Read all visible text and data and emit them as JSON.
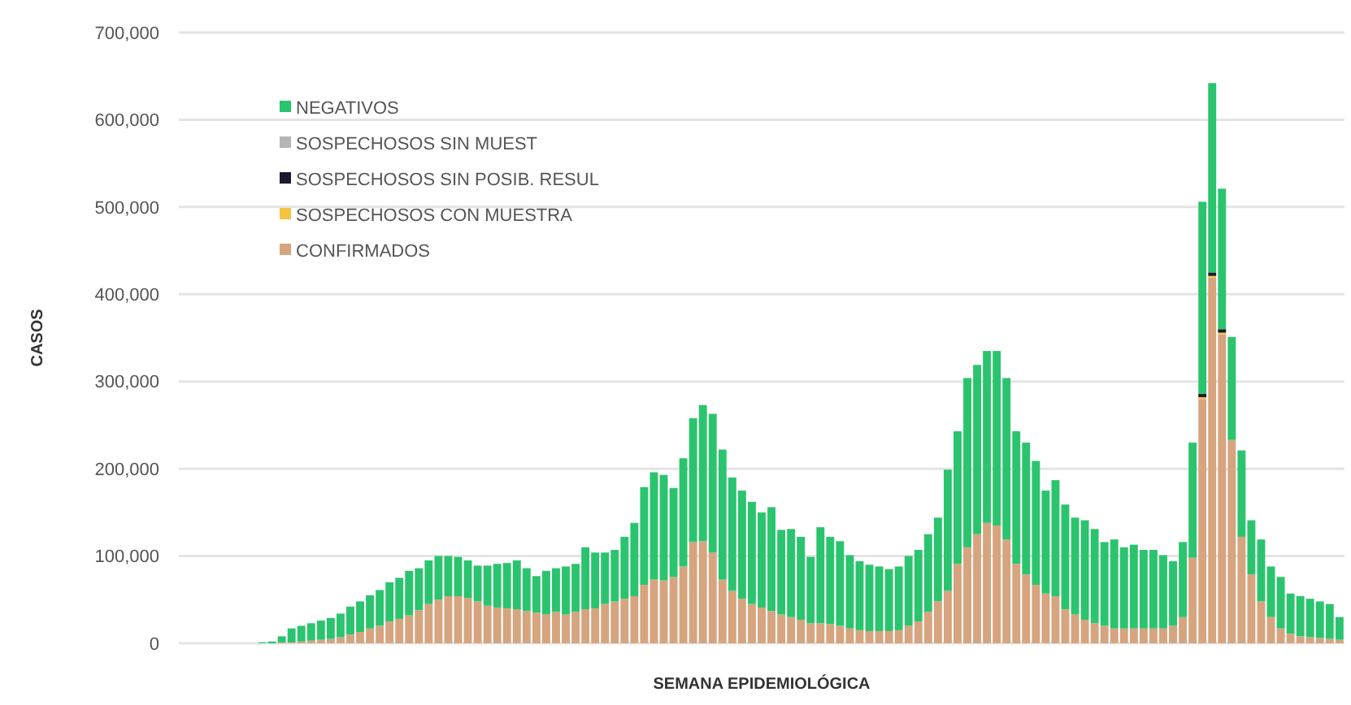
{
  "chart_data": {
    "type": "bar",
    "stacked": true,
    "xlabel": "SEMANA EPIDEMIOLÓGICA",
    "ylabel": "CASOS",
    "ylim": [
      0,
      700000
    ],
    "yticks": [
      {
        "value": 0,
        "label": "0"
      },
      {
        "value": 100000,
        "label": "100,000"
      },
      {
        "value": 200000,
        "label": "200,000"
      },
      {
        "value": 300000,
        "label": "300,000"
      },
      {
        "value": 400000,
        "label": "400,000"
      },
      {
        "value": 500000,
        "label": "500,000"
      },
      {
        "value": 600000,
        "label": "600,000"
      },
      {
        "value": 700000,
        "label": "700,000"
      }
    ],
    "grid": "y",
    "legend": "top left",
    "categories": [
      null,
      null,
      null,
      null,
      null,
      null,
      null,
      null,
      null,
      null,
      null,
      null,
      null,
      null,
      null,
      null,
      null,
      null,
      null,
      null,
      null,
      null,
      null,
      null,
      null,
      null,
      null,
      null,
      null,
      null,
      null,
      null,
      null,
      null,
      null,
      null,
      null,
      null,
      null,
      null,
      null,
      null,
      null,
      null,
      null,
      null,
      null,
      null,
      null,
      null,
      null,
      null,
      null,
      null,
      null,
      null,
      null,
      null,
      null,
      null,
      null,
      null,
      null,
      null,
      null,
      null,
      null,
      null,
      null,
      null,
      null,
      null,
      null,
      null,
      null,
      null,
      null,
      null,
      null,
      null,
      null,
      null,
      null,
      null,
      null,
      null,
      null,
      null,
      null,
      null,
      null,
      null,
      null,
      null,
      null,
      null,
      null,
      null,
      null,
      null,
      null,
      null,
      null,
      null,
      null,
      null,
      null,
      null,
      null,
      null,
      null,
      null,
      null,
      null,
      null,
      null,
      null,
      null,
      null
    ],
    "series": [
      {
        "name": "CONFIRMADOS",
        "color": "#d6a47e",
        "values": [
          0,
          0,
          0,
          0,
          0,
          0,
          0,
          0,
          0,
          0,
          1000,
          1000,
          2000,
          3000,
          4000,
          5000,
          7000,
          10000,
          13000,
          17000,
          20000,
          25000,
          28000,
          32000,
          38000,
          45000,
          50000,
          54000,
          54000,
          52000,
          48000,
          43000,
          41000,
          40000,
          39000,
          37000,
          35000,
          33000,
          36000,
          33000,
          36000,
          39000,
          40000,
          45000,
          48000,
          51000,
          54000,
          67000,
          73000,
          72000,
          76000,
          88000,
          116000,
          117000,
          104000,
          73000,
          60000,
          51000,
          45000,
          41000,
          37000,
          33000,
          30000,
          27000,
          23000,
          23000,
          22000,
          20000,
          17000,
          15000,
          14000,
          14000,
          14000,
          15000,
          20000,
          25000,
          36000,
          48000,
          60000,
          91000,
          110000,
          125000,
          138000,
          135000,
          119000,
          91000,
          79000,
          67000,
          57000,
          54000,
          39000,
          33000,
          27000,
          23000,
          20000,
          17000,
          17000,
          17000,
          17000,
          17000,
          17000,
          20000,
          30000,
          98000,
          280000,
          419000,
          354000,
          233000,
          122000,
          79000,
          48000,
          30000,
          17000,
          11000,
          8000,
          7000,
          6000,
          5000,
          4000
        ]
      },
      {
        "name": "SOSPECHOSOS CON MUESTRA",
        "color": "#f5c342",
        "values": [
          0,
          0,
          0,
          0,
          0,
          0,
          0,
          0,
          0,
          0,
          0,
          0,
          0,
          0,
          0,
          0,
          0,
          0,
          0,
          0,
          0,
          0,
          0,
          0,
          0,
          0,
          0,
          0,
          0,
          0,
          0,
          0,
          0,
          0,
          0,
          0,
          0,
          0,
          0,
          0,
          0,
          0,
          0,
          0,
          0,
          0,
          0,
          0,
          0,
          0,
          0,
          0,
          0,
          0,
          0,
          0,
          0,
          0,
          0,
          0,
          0,
          0,
          0,
          0,
          0,
          0,
          0,
          0,
          0,
          0,
          0,
          0,
          0,
          0,
          0,
          0,
          0,
          0,
          0,
          0,
          0,
          0,
          0,
          0,
          0,
          0,
          0,
          0,
          0,
          0,
          0,
          0,
          0,
          0,
          0,
          0,
          0,
          0,
          0,
          0,
          0,
          0,
          0,
          0,
          2000,
          2000,
          2000,
          0,
          0,
          0,
          0,
          0,
          0,
          0,
          0,
          0,
          0,
          0,
          0
        ]
      },
      {
        "name": "SOSPECHOSOS SIN POSIB. RESUL",
        "color": "#1c1a2e",
        "values": [
          0,
          0,
          0,
          0,
          0,
          0,
          0,
          0,
          0,
          0,
          0,
          0,
          0,
          0,
          0,
          0,
          0,
          0,
          0,
          0,
          0,
          0,
          0,
          0,
          0,
          0,
          0,
          0,
          0,
          0,
          0,
          0,
          0,
          0,
          0,
          0,
          0,
          0,
          0,
          0,
          0,
          0,
          0,
          0,
          0,
          0,
          0,
          0,
          0,
          0,
          0,
          0,
          0,
          0,
          0,
          0,
          0,
          0,
          0,
          0,
          0,
          0,
          0,
          0,
          0,
          0,
          0,
          0,
          0,
          0,
          0,
          0,
          0,
          0,
          0,
          0,
          0,
          0,
          0,
          0,
          0,
          0,
          0,
          0,
          0,
          0,
          0,
          0,
          0,
          0,
          0,
          0,
          0,
          0,
          0,
          0,
          0,
          0,
          0,
          0,
          0,
          0,
          0,
          0,
          4000,
          4000,
          4000,
          0,
          0,
          0,
          0,
          0,
          0,
          0,
          0,
          0,
          0,
          0,
          0
        ]
      },
      {
        "name": "SOSPECHOSOS SIN MUEST",
        "color": "#b5b5b5",
        "values": [
          0,
          0,
          0,
          0,
          0,
          0,
          0,
          0,
          0,
          0,
          0,
          0,
          0,
          0,
          0,
          0,
          0,
          0,
          0,
          0,
          0,
          0,
          0,
          0,
          0,
          0,
          0,
          0,
          0,
          0,
          0,
          0,
          0,
          0,
          0,
          0,
          0,
          0,
          0,
          0,
          0,
          0,
          0,
          0,
          0,
          0,
          0,
          0,
          0,
          0,
          0,
          0,
          0,
          0,
          0,
          0,
          0,
          0,
          0,
          0,
          0,
          0,
          0,
          0,
          0,
          0,
          0,
          0,
          0,
          0,
          0,
          0,
          0,
          0,
          0,
          0,
          0,
          0,
          0,
          0,
          0,
          0,
          0,
          0,
          0,
          0,
          0,
          0,
          0,
          0,
          0,
          0,
          0,
          0,
          0,
          0,
          0,
          0,
          0,
          0,
          0,
          0,
          0,
          0,
          null,
          null,
          null,
          0,
          0,
          0,
          0,
          0,
          0,
          0,
          0,
          0,
          0,
          0,
          0
        ]
      },
      {
        "name": "NEGATIVOS",
        "color": "#2bc46e",
        "values": [
          0,
          0,
          0,
          0,
          0,
          0,
          0,
          0,
          1000,
          2000,
          7000,
          16000,
          18000,
          20000,
          22000,
          24000,
          27000,
          32000,
          35000,
          38000,
          41000,
          45000,
          47000,
          51000,
          48000,
          50000,
          50000,
          46000,
          45000,
          43000,
          41000,
          46000,
          50000,
          52000,
          56000,
          49000,
          42000,
          50000,
          50000,
          55000,
          55000,
          71000,
          64000,
          59000,
          59000,
          71000,
          84000,
          112000,
          123000,
          121000,
          102000,
          124000,
          142000,
          156000,
          159000,
          149000,
          130000,
          124000,
          117000,
          109000,
          119000,
          97000,
          101000,
          95000,
          76000,
          110000,
          100000,
          97000,
          84000,
          79000,
          76000,
          74000,
          71000,
          73000,
          80000,
          82000,
          89000,
          96000,
          139000,
          152000,
          194000,
          194000,
          197000,
          200000,
          185000,
          152000,
          151000,
          142000,
          118000,
          133000,
          120000,
          111000,
          114000,
          108000,
          96000,
          102000,
          93000,
          96000,
          90000,
          90000,
          84000,
          74000,
          86000,
          132000,
          220000,
          217000,
          161000,
          118000,
          99000,
          62000,
          71000,
          58000,
          59000,
          46000,
          46000,
          44000,
          42000,
          40000,
          26000
        ]
      }
    ]
  }
}
